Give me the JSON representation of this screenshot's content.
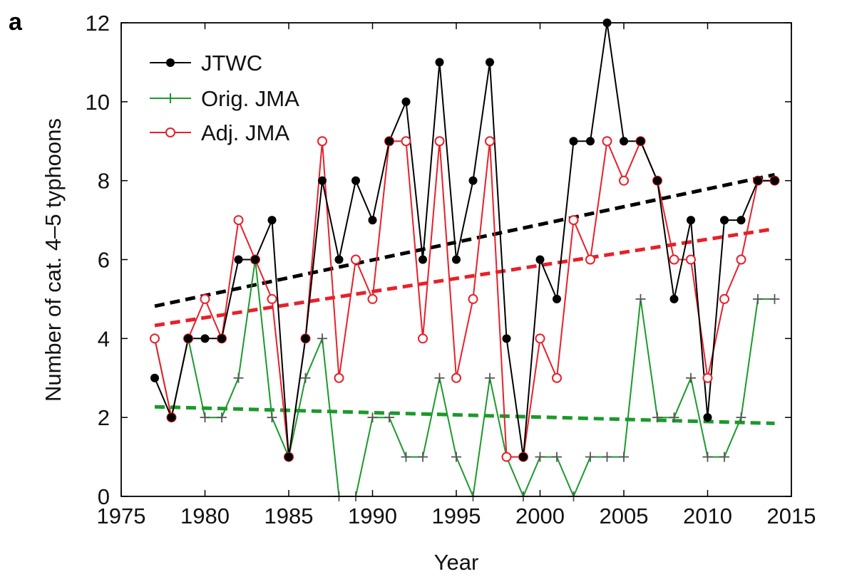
{
  "panel_label": "a",
  "chart_data": {
    "type": "line",
    "xlabel": "Year",
    "ylabel": "Number of cat. 4–5 typhoons",
    "xlim": [
      1975,
      2015
    ],
    "ylim": [
      0,
      12
    ],
    "xticks": [
      1975,
      1980,
      1985,
      1990,
      1995,
      2000,
      2005,
      2010,
      2015
    ],
    "yticks": [
      0,
      2,
      4,
      6,
      8,
      10,
      12
    ],
    "x": [
      1977,
      1978,
      1979,
      1980,
      1981,
      1982,
      1983,
      1984,
      1985,
      1986,
      1987,
      1988,
      1989,
      1990,
      1991,
      1992,
      1993,
      1994,
      1995,
      1996,
      1997,
      1998,
      1999,
      2000,
      2001,
      2002,
      2003,
      2004,
      2005,
      2006,
      2007,
      2008,
      2009,
      2010,
      2011,
      2012,
      2013,
      2014
    ],
    "legend_position": "top-left",
    "series": [
      {
        "name": "JTWC",
        "color": "#000000",
        "marker": "filled-circle",
        "values": [
          3,
          2,
          4,
          4,
          4,
          6,
          6,
          7,
          1,
          4,
          8,
          6,
          8,
          7,
          9,
          10,
          6,
          11,
          6,
          8,
          11,
          4,
          1,
          6,
          5,
          9,
          9,
          12,
          9,
          9,
          8,
          5,
          7,
          2,
          7,
          7,
          8,
          8
        ],
        "trend": {
          "start": [
            1977,
            4.82
          ],
          "end": [
            2014,
            8.15
          ]
        }
      },
      {
        "name": "Orig. JMA",
        "color": "#1a9a2a",
        "marker": "plus",
        "values": [
          4,
          2,
          4,
          2,
          2,
          3,
          6,
          2,
          1,
          3,
          4,
          0,
          0,
          2,
          2,
          1,
          1,
          3,
          1,
          0,
          3,
          1,
          0,
          1,
          1,
          0,
          1,
          1,
          1,
          5,
          2,
          2,
          3,
          1,
          1,
          2,
          5,
          5
        ],
        "trend": {
          "start": [
            1977,
            2.27
          ],
          "end": [
            2014,
            1.85
          ]
        }
      },
      {
        "name": "Adj. JMA",
        "color": "#e8202a",
        "marker": "open-circle",
        "values": [
          4,
          2,
          4,
          5,
          4,
          7,
          6,
          5,
          1,
          4,
          9,
          3,
          6,
          5,
          9,
          9,
          4,
          9,
          3,
          5,
          9,
          1,
          1,
          4,
          3,
          7,
          6,
          9,
          8,
          9,
          8,
          6,
          6,
          3,
          5,
          6,
          8,
          8
        ],
        "trend": {
          "start": [
            1977,
            4.33
          ],
          "end": [
            2014,
            6.78
          ]
        }
      }
    ]
  }
}
